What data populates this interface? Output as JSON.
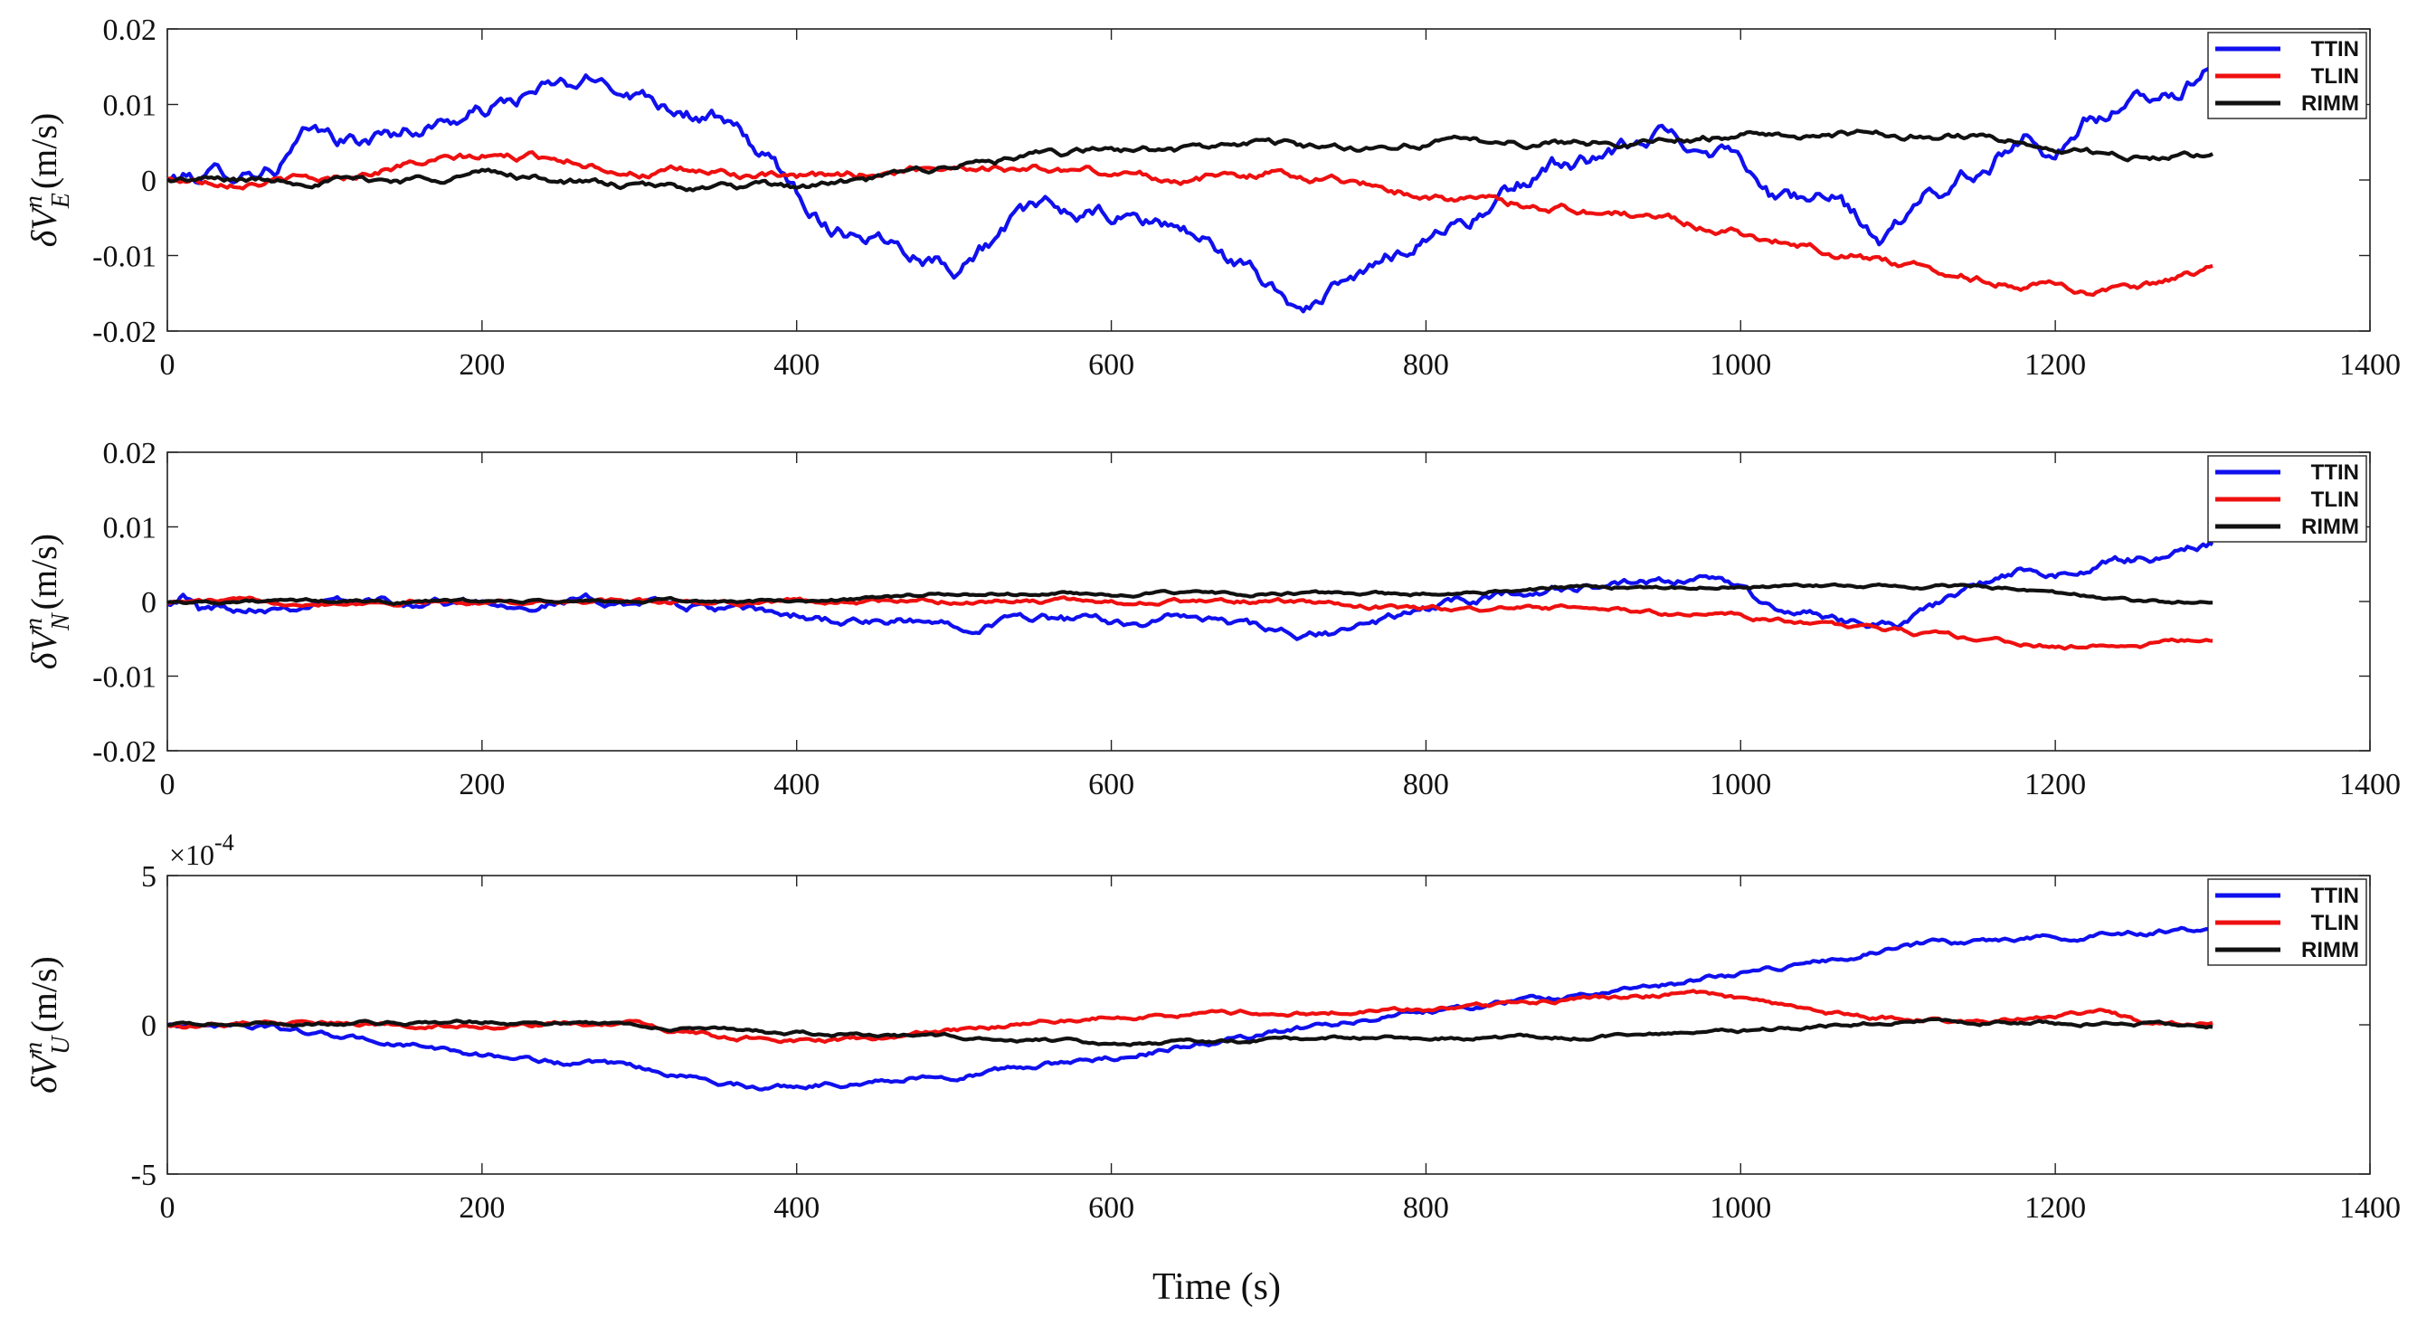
{
  "figure": {
    "xlabel": "Time (s)",
    "legend_labels": [
      "TTIN",
      "TLIN",
      "RIMM"
    ],
    "colors": {
      "TTIN": "#1010ee",
      "TLIN": "#ee1010",
      "RIMM": "#111111"
    }
  },
  "chart_data": [
    {
      "type": "line",
      "title": "",
      "ylabel_symbol": "δV",
      "ylabel_sup": "n",
      "ylabel_sub": "E",
      "ylabel_unit": "(m/s)",
      "xlim": [
        0,
        1400
      ],
      "ylim": [
        -0.02,
        0.02
      ],
      "xticks": [
        0,
        200,
        400,
        600,
        800,
        1000,
        1200,
        1400
      ],
      "xtick_labels": [
        "0",
        "200",
        "400",
        "600",
        "800",
        "1000",
        "1200",
        "1400"
      ],
      "yticks": [
        -0.02,
        -0.01,
        0,
        0.01,
        0.02
      ],
      "ytick_labels": [
        "-0.02",
        "-0.01",
        "0",
        "0.01",
        "0.02"
      ],
      "multiplier_label": "",
      "legend": "top-right",
      "noise": [
        0.0015,
        0.0007,
        0.0006
      ],
      "series": [
        {
          "name": "TTIN",
          "x": [
            0,
            40,
            70,
            90,
            120,
            160,
            200,
            240,
            280,
            310,
            350,
            380,
            420,
            450,
            500,
            530,
            550,
            600,
            640,
            660,
            700,
            720,
            760,
            800,
            840,
            880,
            920,
            950,
            970,
            1000,
            1020,
            1060,
            1090,
            1120,
            1150,
            1180,
            1200,
            1220,
            1250,
            1280,
            1300
          ],
          "y": [
            0,
            0.001,
            0.002,
            0.006,
            0.005,
            0.007,
            0.009,
            0.012,
            0.013,
            0.011,
            0.008,
            0.003,
            -0.006,
            -0.007,
            -0.011,
            -0.007,
            -0.004,
            -0.005,
            -0.006,
            -0.008,
            -0.014,
            -0.017,
            -0.013,
            -0.007,
            -0.004,
            0.002,
            0.003,
            0.006,
            0.005,
            0.004,
            -0.002,
            -0.003,
            -0.008,
            -0.002,
            0.001,
            0.006,
            0.004,
            0.008,
            0.01,
            0.012,
            0.016
          ]
        },
        {
          "name": "TLIN",
          "x": [
            0,
            100,
            150,
            200,
            250,
            300,
            350,
            400,
            500,
            600,
            650,
            700,
            750,
            800,
            850,
            900,
            950,
            1000,
            1050,
            1100,
            1150,
            1200,
            1250,
            1300
          ],
          "y": [
            0,
            0,
            0.002,
            0.003,
            0.003,
            0.001,
            0.001,
            0,
            0.002,
            0.001,
            0,
            0.001,
            0,
            -0.002,
            -0.003,
            -0.004,
            -0.005,
            -0.007,
            -0.009,
            -0.011,
            -0.013,
            -0.014,
            -0.015,
            -0.012
          ]
        },
        {
          "name": "RIMM",
          "x": [
            0,
            100,
            150,
            200,
            250,
            300,
            350,
            400,
            450,
            500,
            550,
            600,
            650,
            700,
            750,
            800,
            850,
            900,
            950,
            1000,
            1050,
            1100,
            1150,
            1200,
            1250,
            1300
          ],
          "y": [
            0,
            0,
            0,
            0.001,
            0,
            -0.001,
            -0.001,
            -0.001,
            0,
            0.002,
            0.003,
            0.004,
            0.004,
            0.005,
            0.004,
            0.005,
            0.005,
            0.005,
            0.005,
            0.006,
            0.006,
            0.006,
            0.006,
            0.004,
            0.003,
            0.003
          ]
        }
      ]
    },
    {
      "type": "line",
      "title": "",
      "ylabel_symbol": "δV",
      "ylabel_sup": "n",
      "ylabel_sub": "N",
      "ylabel_unit": "(m/s)",
      "xlim": [
        0,
        1400
      ],
      "ylim": [
        -0.02,
        0.02
      ],
      "xticks": [
        0,
        200,
        400,
        600,
        800,
        1000,
        1200,
        1400
      ],
      "xtick_labels": [
        "0",
        "200",
        "400",
        "600",
        "800",
        "1000",
        "1200",
        "1400"
      ],
      "yticks": [
        -0.02,
        -0.01,
        0,
        0.01,
        0.02
      ],
      "ytick_labels": [
        "-0.02",
        "-0.01",
        "0",
        "0.01",
        "0.02"
      ],
      "multiplier_label": "",
      "legend": "top-right",
      "noise": [
        0.0008,
        0.0004,
        0.0003
      ],
      "series": [
        {
          "name": "TTIN",
          "x": [
            0,
            10,
            20,
            100,
            200,
            300,
            350,
            400,
            450,
            500,
            550,
            600,
            650,
            700,
            720,
            750,
            800,
            850,
            900,
            950,
            970,
            1000,
            1020,
            1050,
            1100,
            1150,
            1180,
            1200,
            1230,
            1260,
            1300
          ],
          "y": [
            0,
            0.001,
            -0.001,
            0,
            0,
            0,
            -0.001,
            -0.002,
            -0.003,
            -0.003,
            -0.002,
            -0.003,
            -0.002,
            -0.004,
            -0.005,
            -0.004,
            -0.001,
            0.001,
            0.002,
            0.002,
            0.003,
            0.002,
            -0.001,
            -0.002,
            -0.003,
            0.002,
            0.004,
            0.003,
            0.005,
            0.006,
            0.008
          ]
        },
        {
          "name": "TLIN",
          "x": [
            0,
            200,
            400,
            500,
            600,
            700,
            800,
            850,
            900,
            1000,
            1050,
            1100,
            1150,
            1200,
            1250,
            1300
          ],
          "y": [
            0,
            0,
            0,
            0,
            0,
            0,
            -0.001,
            -0.001,
            -0.001,
            -0.002,
            -0.003,
            -0.004,
            -0.005,
            -0.006,
            -0.006,
            -0.005
          ]
        },
        {
          "name": "RIMM",
          "x": [
            0,
            200,
            400,
            500,
            600,
            700,
            800,
            900,
            1000,
            1100,
            1150,
            1200,
            1250,
            1300
          ],
          "y": [
            0,
            0,
            0,
            0.001,
            0.001,
            0.001,
            0.001,
            0.002,
            0.002,
            0.002,
            0.002,
            0.001,
            0,
            0
          ]
        }
      ]
    },
    {
      "type": "line",
      "title": "",
      "ylabel_symbol": "δV",
      "ylabel_sup": "n",
      "ylabel_sub": "U",
      "ylabel_unit": "(m/s)",
      "xlim": [
        0,
        1400
      ],
      "ylim": [
        -5,
        5
      ],
      "xticks": [
        0,
        200,
        400,
        600,
        800,
        1000,
        1200,
        1400
      ],
      "xtick_labels": [
        "0",
        "200",
        "400",
        "600",
        "800",
        "1000",
        "1200",
        "1400"
      ],
      "yticks": [
        -5,
        0,
        5
      ],
      "ytick_labels": [
        "-5",
        "0",
        "5"
      ],
      "multiplier_label": "×10",
      "multiplier_exp": "-4",
      "legend": "top-right",
      "noise": [
        0.12,
        0.1,
        0.08
      ],
      "series": [
        {
          "name": "TTIN",
          "x": [
            0,
            50,
            200,
            300,
            380,
            500,
            600,
            700,
            800,
            900,
            950,
            1000,
            1100,
            1200,
            1250,
            1300
          ],
          "y": [
            0,
            0,
            -1.0,
            -1.5,
            -2.1,
            -1.7,
            -1.1,
            -0.3,
            0.5,
            1.0,
            1.3,
            1.7,
            2.6,
            3.0,
            3.1,
            3.2
          ]
        },
        {
          "name": "TLIN",
          "x": [
            0,
            100,
            200,
            250,
            300,
            350,
            400,
            450,
            500,
            600,
            700,
            800,
            900,
            950,
            970,
            1000,
            1050,
            1100,
            1150,
            1200,
            1230,
            1260,
            1300
          ],
          "y": [
            0,
            0,
            0,
            0,
            0,
            -0.4,
            -0.5,
            -0.5,
            -0.2,
            0.3,
            0.4,
            0.5,
            0.9,
            1.0,
            1.1,
            0.8,
            0.4,
            0.2,
            0.1,
            0.3,
            0.5,
            0,
            0
          ]
        },
        {
          "name": "RIMM",
          "x": [
            0,
            200,
            300,
            400,
            500,
            600,
            700,
            800,
            900,
            1000,
            1100,
            1200,
            1300
          ],
          "y": [
            0,
            0.1,
            0,
            -0.3,
            -0.4,
            -0.6,
            -0.5,
            -0.4,
            -0.4,
            -0.2,
            0.1,
            0.1,
            0
          ]
        }
      ]
    }
  ]
}
